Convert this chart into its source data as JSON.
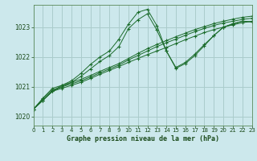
{
  "title": "Graphe pression niveau de la mer (hPa)",
  "background_color": "#cce8ec",
  "grid_color": "#aacccc",
  "line_color": "#1a6b2a",
  "xlim": [
    0,
    23
  ],
  "ylim": [
    1019.7,
    1023.75
  ],
  "yticks": [
    1020,
    1021,
    1022,
    1023
  ],
  "xticks": [
    0,
    1,
    2,
    3,
    4,
    5,
    6,
    7,
    8,
    9,
    10,
    11,
    12,
    13,
    14,
    15,
    16,
    17,
    18,
    19,
    20,
    21,
    22,
    23
  ],
  "series": [
    {
      "x": [
        0,
        1,
        2,
        3,
        4,
        5,
        6,
        7,
        8,
        9,
        10,
        11,
        12,
        13,
        14,
        15,
        16,
        17,
        18,
        19,
        20,
        21,
        22,
        23
      ],
      "y": [
        1020.25,
        1020.55,
        1020.85,
        1020.95,
        1021.05,
        1021.15,
        1021.28,
        1021.42,
        1021.55,
        1021.68,
        1021.82,
        1021.95,
        1022.08,
        1022.2,
        1022.32,
        1022.45,
        1022.58,
        1022.7,
        1022.82,
        1022.92,
        1023.0,
        1023.08,
        1023.15,
        1023.2
      ]
    },
    {
      "x": [
        0,
        1,
        2,
        3,
        4,
        5,
        6,
        7,
        8,
        9,
        10,
        11,
        12,
        13,
        14,
        15,
        16,
        17,
        18,
        19,
        20,
        21,
        22,
        23
      ],
      "y": [
        1020.25,
        1020.55,
        1020.85,
        1021.0,
        1021.1,
        1021.2,
        1021.33,
        1021.47,
        1021.6,
        1021.73,
        1021.9,
        1022.05,
        1022.2,
        1022.35,
        1022.48,
        1022.6,
        1022.73,
        1022.85,
        1022.96,
        1023.06,
        1023.14,
        1023.2,
        1023.26,
        1023.3
      ]
    },
    {
      "x": [
        0,
        1,
        2,
        3,
        4,
        5,
        6,
        7,
        8,
        9,
        10,
        11,
        12,
        13,
        14,
        15,
        16,
        17,
        18,
        19,
        20,
        21,
        22,
        23
      ],
      "y": [
        1020.25,
        1020.55,
        1020.85,
        1021.05,
        1021.15,
        1021.25,
        1021.38,
        1021.52,
        1021.65,
        1021.78,
        1021.95,
        1022.12,
        1022.28,
        1022.42,
        1022.55,
        1022.68,
        1022.8,
        1022.92,
        1023.02,
        1023.12,
        1023.2,
        1023.27,
        1023.33,
        1023.37
      ]
    },
    {
      "x": [
        0,
        1,
        2,
        3,
        4,
        5,
        6,
        7,
        8,
        9,
        10,
        11,
        12,
        13,
        14,
        15,
        16,
        17,
        18,
        19,
        20,
        21,
        22,
        23
      ],
      "y": [
        1020.25,
        1020.6,
        1020.9,
        1021.0,
        1021.15,
        1021.35,
        1021.6,
        1021.85,
        1022.05,
        1022.35,
        1022.95,
        1023.25,
        1023.45,
        1022.9,
        1022.2,
        1021.65,
        1021.82,
        1022.1,
        1022.42,
        1022.72,
        1023.0,
        1023.1,
        1023.2,
        1023.18
      ]
    },
    {
      "x": [
        0,
        1,
        2,
        3,
        4,
        5,
        6,
        7,
        8,
        9,
        10,
        11,
        12,
        13,
        14,
        15,
        16,
        17,
        18,
        19,
        20,
        21,
        22,
        23
      ],
      "y": [
        1020.25,
        1020.62,
        1020.95,
        1021.05,
        1021.2,
        1021.45,
        1021.75,
        1022.0,
        1022.2,
        1022.6,
        1023.1,
        1023.5,
        1023.6,
        1023.05,
        1022.2,
        1021.62,
        1021.78,
        1022.05,
        1022.38,
        1022.72,
        1023.0,
        1023.12,
        1023.2,
        1023.18
      ]
    }
  ]
}
